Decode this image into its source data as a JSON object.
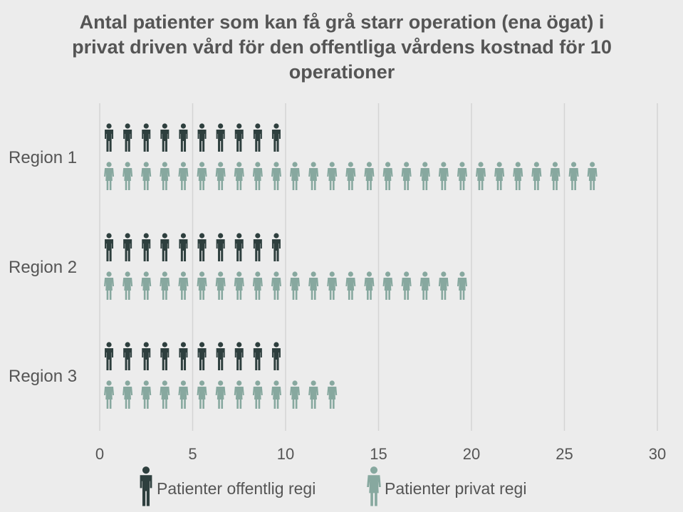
{
  "chart_data": {
    "type": "pictogram-bar",
    "title": "Antal patienter som kan få grå starr operation (ena ögat) i privat driven vård för den offentliga vårdens kostnad för 10 operationer",
    "xlabel": "",
    "ylabel": "",
    "xlim": [
      0,
      30
    ],
    "xticks": [
      0,
      5,
      10,
      15,
      20,
      25,
      30
    ],
    "categories": [
      "Region 1",
      "Region 2",
      "Region 3"
    ],
    "series": [
      {
        "name": "Patienter offentlig regi",
        "color": "#2e3f3e",
        "icon": "person-male-icon",
        "values": [
          10,
          10,
          10
        ]
      },
      {
        "name": "Patienter privat regi",
        "color": "#87a89f",
        "icon": "person-female-icon",
        "values": [
          27,
          20,
          13
        ]
      }
    ],
    "grid": "vertical",
    "legend_position": "bottom"
  }
}
